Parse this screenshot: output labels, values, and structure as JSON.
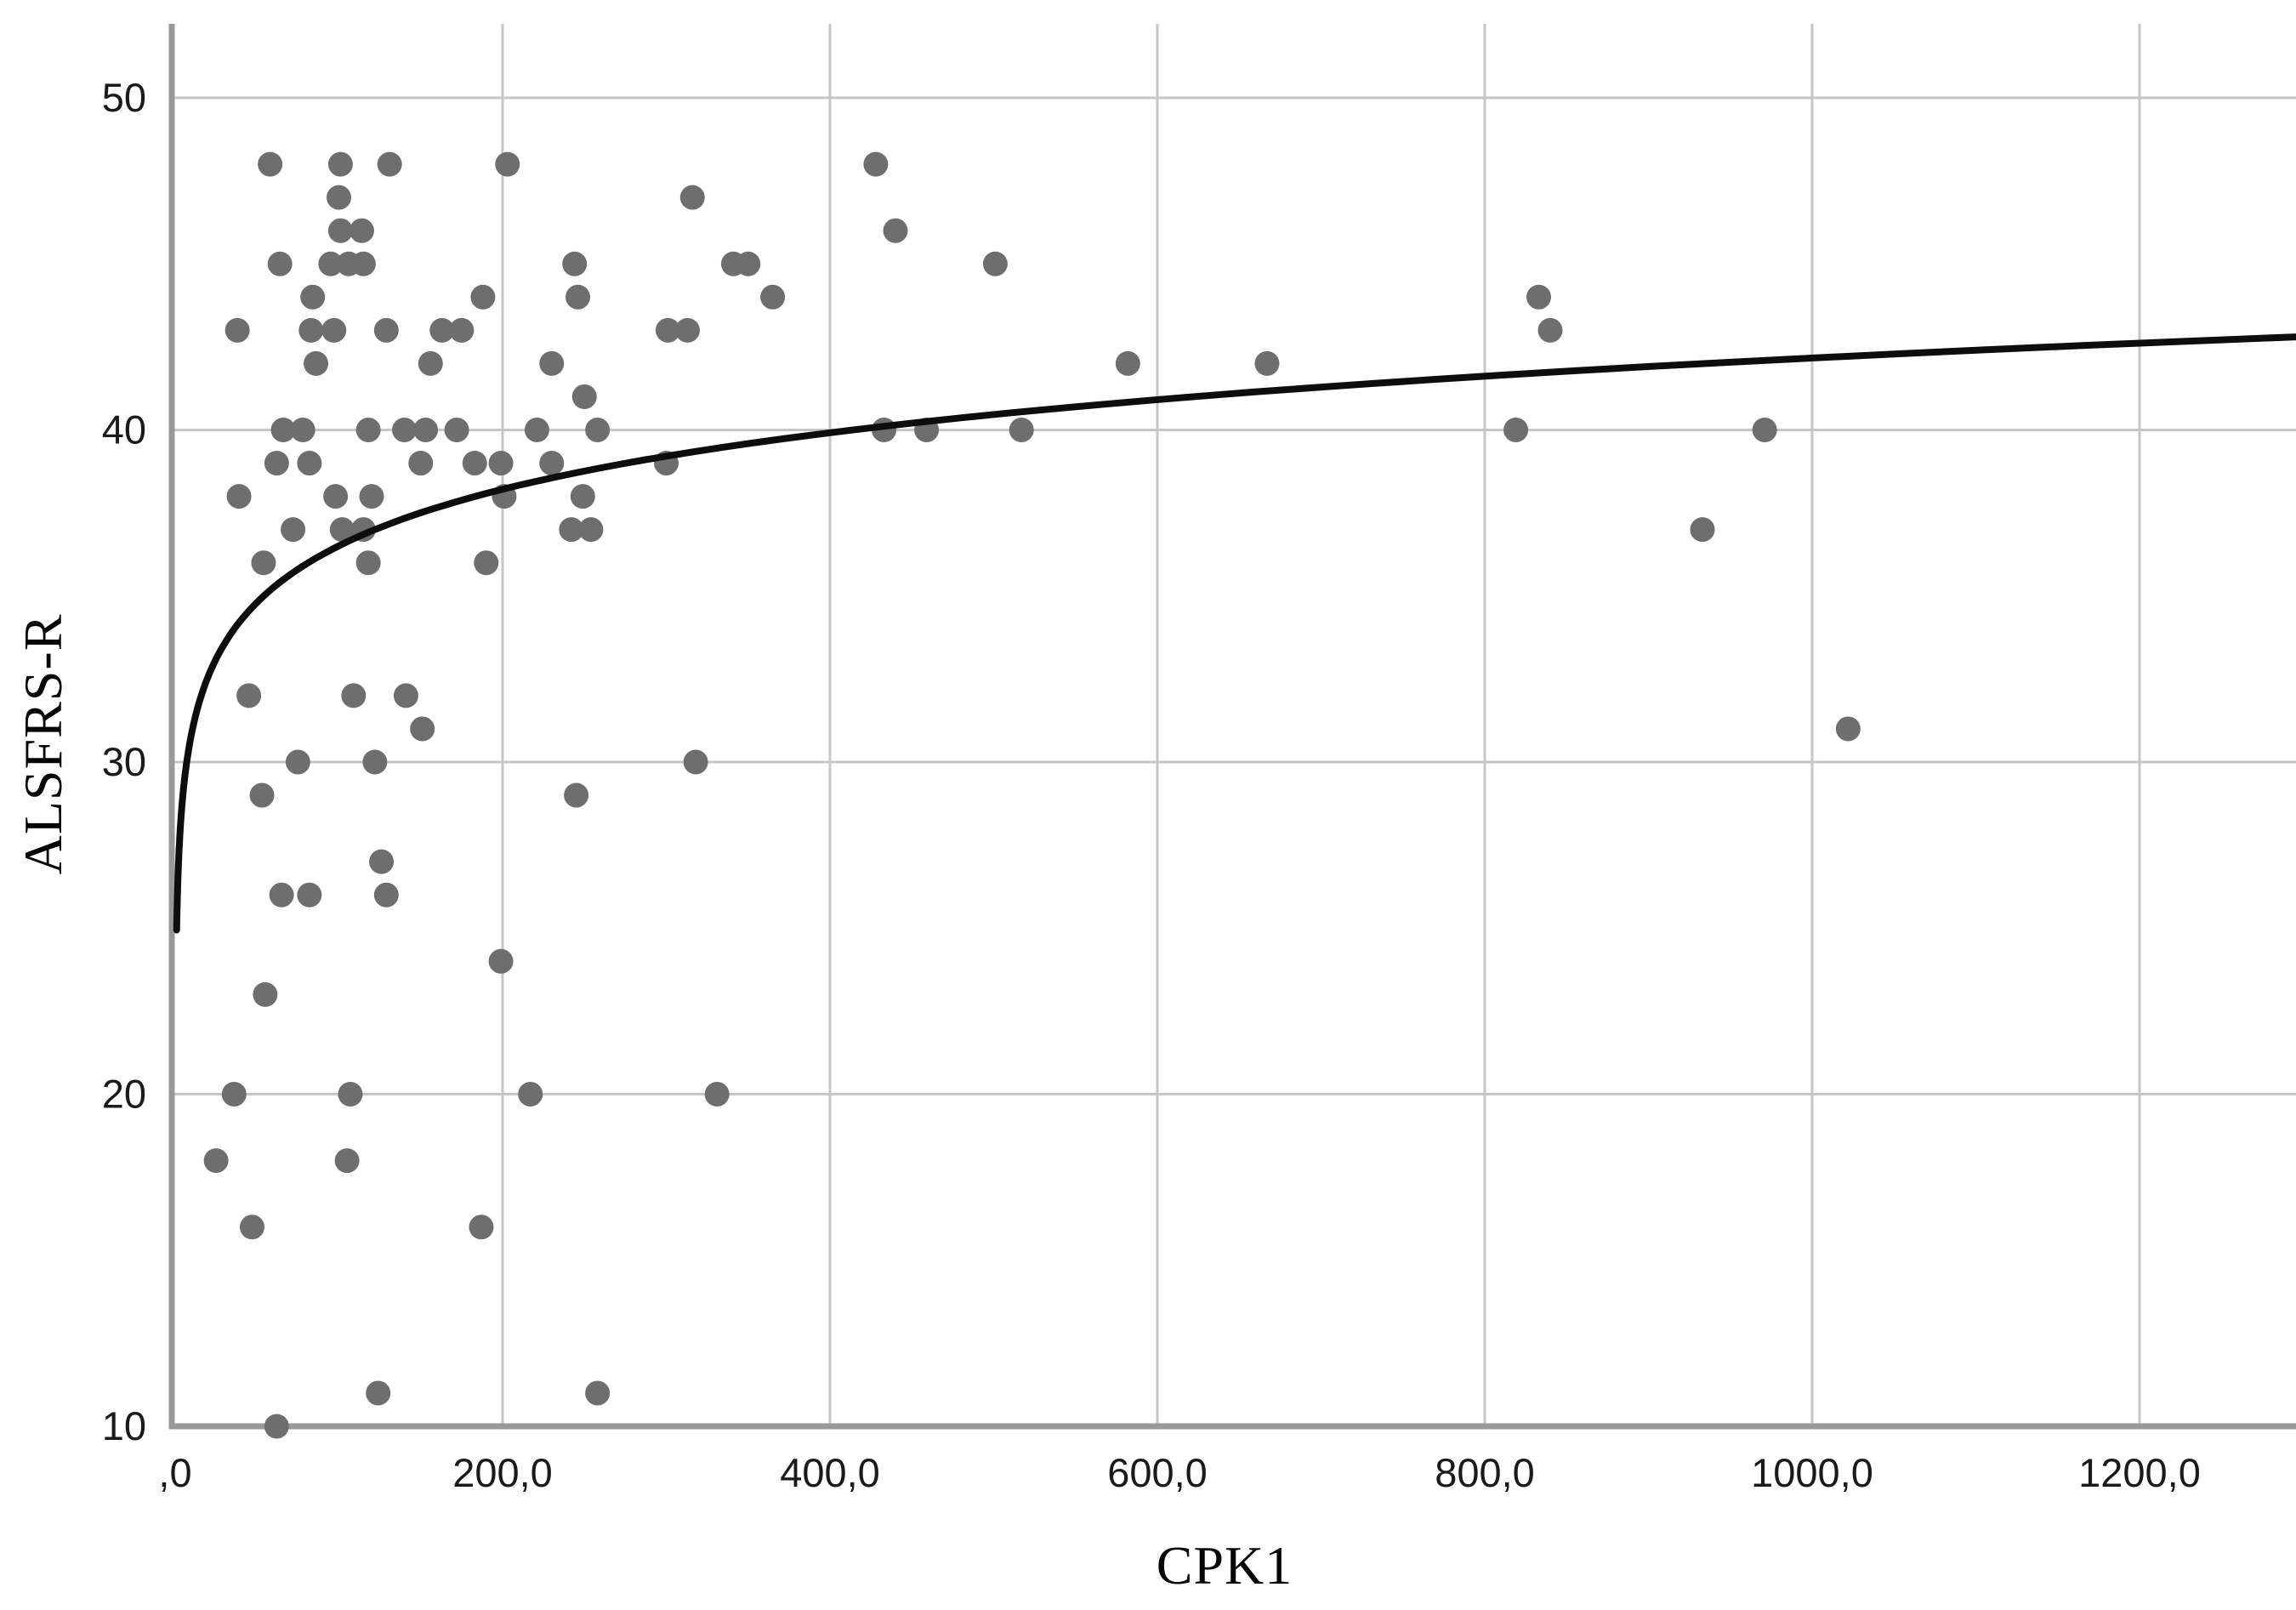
{
  "chart_data": {
    "type": "scatter",
    "title": "",
    "xlabel": "CPK1",
    "ylabel": "ALSFRS-R",
    "x_tick_labels": [
      ",0",
      "200,0",
      "400,0",
      "600,0",
      "800,0",
      "1000,0",
      "1200,0"
    ],
    "x_tick_values": [
      0,
      200,
      400,
      600,
      800,
      1000,
      1200
    ],
    "y_tick_labels": [
      "10",
      "20",
      "30",
      "40",
      "50"
    ],
    "y_tick_values": [
      10,
      20,
      30,
      40,
      50
    ],
    "xlim": [
      0,
      1296
    ],
    "ylim": [
      10,
      52.2
    ],
    "grid": true,
    "legend": false,
    "point_color": "#6e6e6e",
    "curve_color": "#0d0d0d",
    "grid_color": "#c6c6c6",
    "axis_color": "#999999",
    "points": [
      [
        58,
        48
      ],
      [
        101,
        48
      ],
      [
        131,
        48
      ],
      [
        203,
        48
      ],
      [
        428,
        48
      ],
      [
        100,
        47
      ],
      [
        316,
        47
      ],
      [
        101,
        46
      ],
      [
        114,
        46
      ],
      [
        440,
        46
      ],
      [
        64,
        45
      ],
      [
        95,
        45
      ],
      [
        106,
        45
      ],
      [
        115,
        45
      ],
      [
        244,
        45
      ],
      [
        341,
        45
      ],
      [
        350,
        45
      ],
      [
        501,
        45
      ],
      [
        84,
        44
      ],
      [
        188,
        44
      ],
      [
        246,
        44
      ],
      [
        365,
        44
      ],
      [
        833,
        44
      ],
      [
        38,
        43
      ],
      [
        83,
        43
      ],
      [
        97,
        43
      ],
      [
        129,
        43
      ],
      [
        163,
        43
      ],
      [
        175,
        43
      ],
      [
        301,
        43
      ],
      [
        313,
        43
      ],
      [
        840,
        43
      ],
      [
        86,
        42
      ],
      [
        156,
        42
      ],
      [
        230,
        42
      ],
      [
        582,
        42
      ],
      [
        667,
        42
      ],
      [
        250,
        41
      ],
      [
        66,
        40
      ],
      [
        78,
        40
      ],
      [
        118,
        40
      ],
      [
        140,
        40
      ],
      [
        153,
        40
      ],
      [
        172,
        40
      ],
      [
        221,
        40
      ],
      [
        258,
        40
      ],
      [
        433,
        40
      ],
      [
        459,
        40
      ],
      [
        517,
        40
      ],
      [
        819,
        40
      ],
      [
        971,
        40
      ],
      [
        62,
        39
      ],
      [
        82,
        39
      ],
      [
        150,
        39
      ],
      [
        183,
        39
      ],
      [
        199,
        39
      ],
      [
        230,
        39
      ],
      [
        300,
        39
      ],
      [
        39,
        38
      ],
      [
        98,
        38
      ],
      [
        120,
        38
      ],
      [
        201,
        38
      ],
      [
        249,
        38
      ],
      [
        72,
        37
      ],
      [
        102,
        37
      ],
      [
        115,
        37
      ],
      [
        242,
        37
      ],
      [
        254,
        37
      ],
      [
        933,
        37
      ],
      [
        54,
        36
      ],
      [
        118,
        36
      ],
      [
        190,
        36
      ],
      [
        45,
        32
      ],
      [
        109,
        32
      ],
      [
        141,
        32
      ],
      [
        151,
        31
      ],
      [
        1022,
        31
      ],
      [
        75,
        30
      ],
      [
        122,
        30
      ],
      [
        318,
        30
      ],
      [
        53,
        29
      ],
      [
        245,
        29
      ],
      [
        126,
        27
      ],
      [
        65,
        26
      ],
      [
        82,
        26
      ],
      [
        129,
        26
      ],
      [
        199,
        24
      ],
      [
        55,
        23
      ],
      [
        36,
        20
      ],
      [
        107,
        20
      ],
      [
        217,
        20
      ],
      [
        331,
        20
      ],
      [
        25,
        18
      ],
      [
        105,
        18
      ],
      [
        47,
        16
      ],
      [
        187,
        16
      ],
      [
        124,
        11
      ],
      [
        258,
        11
      ],
      [
        62,
        10
      ]
    ],
    "fit_curve": {
      "type": "logarithmic",
      "a": 25.2,
      "b": 2.456,
      "x_range": [
        0.9,
        1296
      ]
    }
  }
}
